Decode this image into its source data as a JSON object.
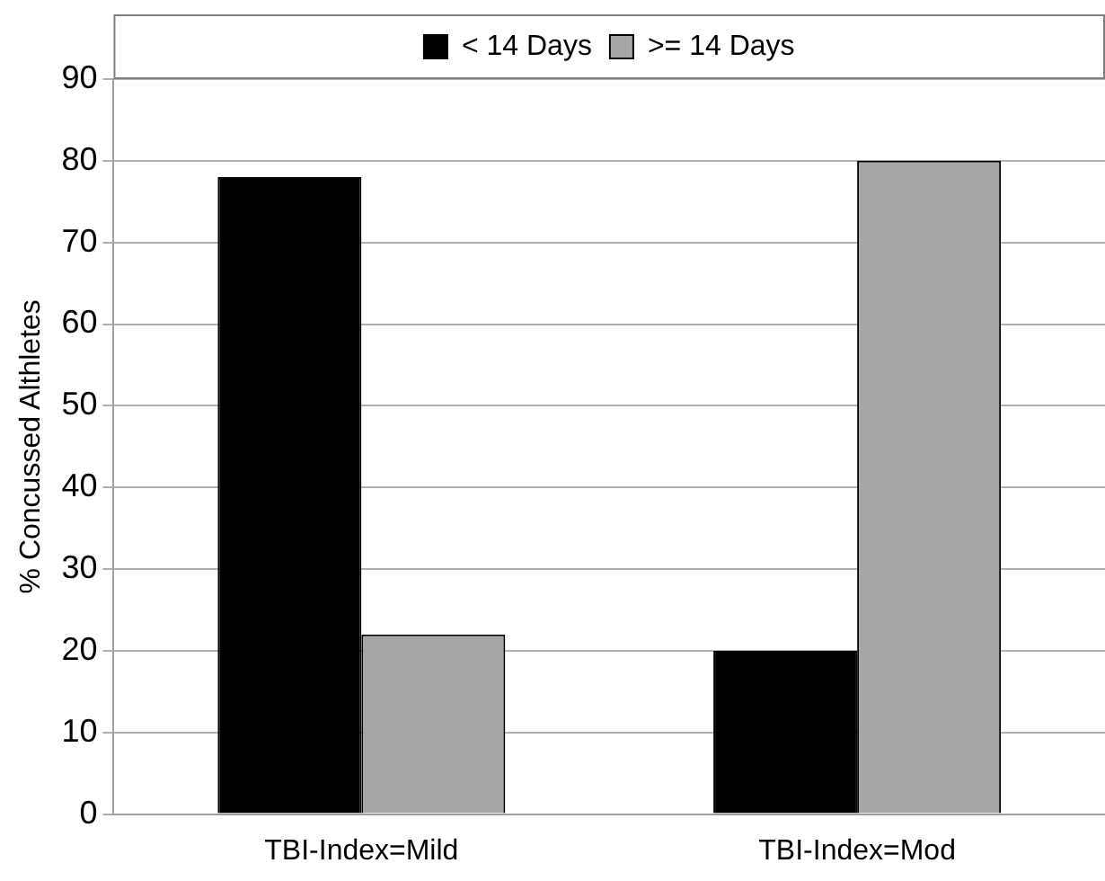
{
  "chart_data": {
    "type": "bar",
    "ylabel": "% Concussed Althletes",
    "categories": [
      "TBI-Index=Mild",
      "TBI-Index=Mod"
    ],
    "series": [
      {
        "name": "< 14 Days",
        "color": "#000000",
        "values": [
          78,
          20
        ]
      },
      {
        "name": ">= 14 Days",
        "color": "#a6a6a6",
        "values": [
          22,
          80
        ]
      }
    ],
    "ylim": [
      0,
      90
    ],
    "yticks": [
      0,
      10,
      20,
      30,
      40,
      50,
      60,
      70,
      80,
      90
    ],
    "grid": "y",
    "legend": "top"
  }
}
